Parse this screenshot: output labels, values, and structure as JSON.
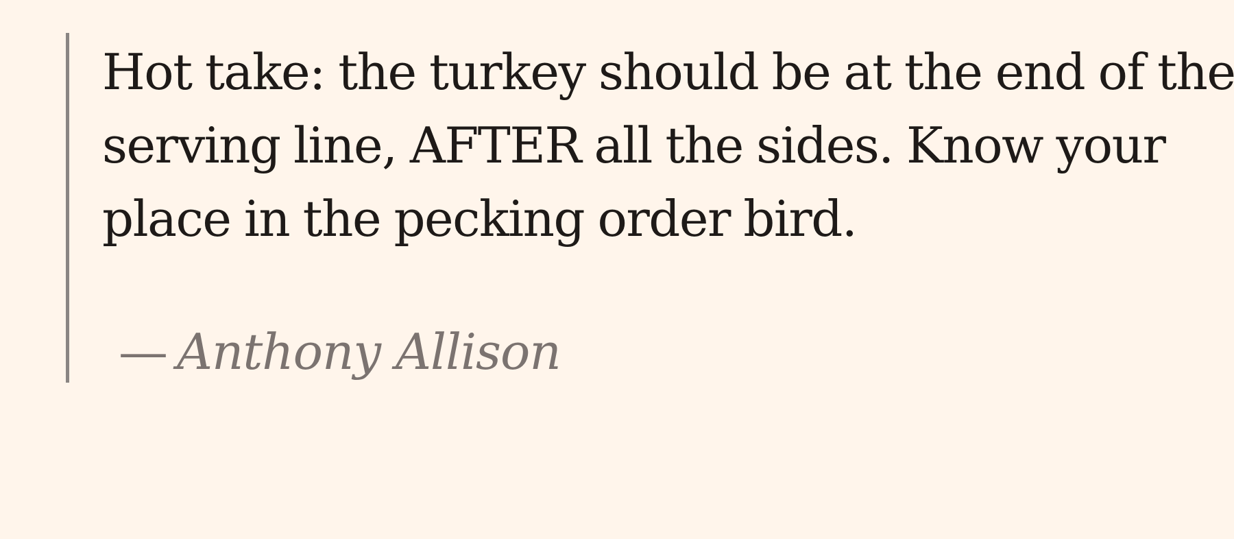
{
  "quote": {
    "text": "Hot take: the turkey should be at the end of the serving line, AFTER all the sides. Know your place in the pecking order bird.",
    "dash": "—",
    "author": "Anthony Allison"
  },
  "colors": {
    "background": "#fff5eb",
    "text": "#1e1a18",
    "attribution": "#7b7370",
    "border": "#8a8583"
  }
}
